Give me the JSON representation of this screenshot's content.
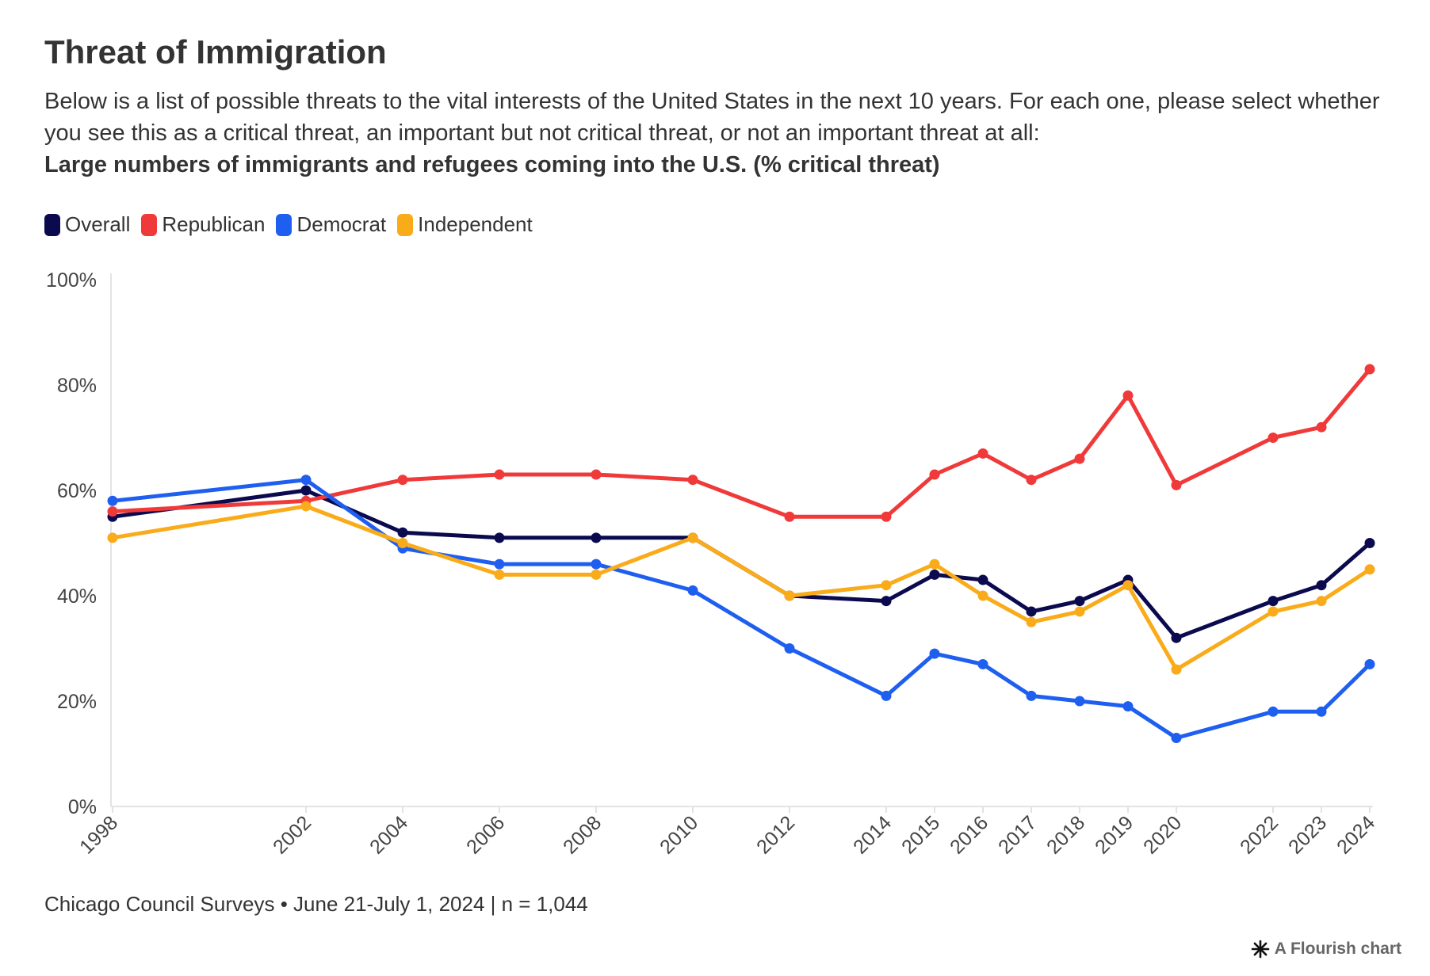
{
  "header": {
    "title": "Threat of Immigration",
    "subtitle": "Below is a list of possible threats to the vital interests of the United States in the next 10 years. For each one, please select whether you see this as a critical threat, an important but not critical threat, or not an important threat at all:",
    "subtitle_bold": "Large numbers of immigrants and refugees coming into the U.S. (% critical threat)"
  },
  "legend": [
    {
      "label": "Overall",
      "color": "#0b0a4f"
    },
    {
      "label": "Republican",
      "color": "#f03a3a"
    },
    {
      "label": "Democrat",
      "color": "#1f5ff0"
    },
    {
      "label": "Independent",
      "color": "#f9ab1a"
    }
  ],
  "footer": {
    "source": "Chicago Council Surveys • June 21-July 1, 2024 | n = 1,044"
  },
  "credit": {
    "label": "A Flourish chart",
    "icon": "flourish-star-icon"
  },
  "chart_data": {
    "type": "line",
    "x": [
      1998,
      2002,
      2004,
      2006,
      2008,
      2010,
      2012,
      2014,
      2015,
      2016,
      2017,
      2018,
      2019,
      2020,
      2022,
      2023,
      2024
    ],
    "ylim": [
      0,
      100
    ],
    "yticks": [
      0,
      20,
      40,
      60,
      80,
      100
    ],
    "ytick_labels": [
      "0%",
      "20%",
      "40%",
      "60%",
      "80%",
      "100%"
    ],
    "grid": false,
    "legend_position": "top-left",
    "series": [
      {
        "name": "Overall",
        "color": "#0b0a4f",
        "values": [
          55,
          60,
          52,
          51,
          51,
          51,
          40,
          39,
          44,
          43,
          37,
          39,
          43,
          32,
          39,
          42,
          50
        ]
      },
      {
        "name": "Republican",
        "color": "#f03a3a",
        "values": [
          56,
          58,
          62,
          63,
          63,
          62,
          55,
          55,
          63,
          67,
          62,
          66,
          78,
          61,
          70,
          72,
          83
        ]
      },
      {
        "name": "Democrat",
        "color": "#1f5ff0",
        "values": [
          58,
          62,
          49,
          46,
          46,
          41,
          30,
          21,
          29,
          27,
          21,
          20,
          19,
          13,
          18,
          18,
          27
        ]
      },
      {
        "name": "Independent",
        "color": "#f9ab1a",
        "values": [
          51,
          57,
          50,
          44,
          44,
          51,
          40,
          42,
          46,
          40,
          35,
          37,
          42,
          26,
          37,
          39,
          45
        ]
      }
    ]
  }
}
